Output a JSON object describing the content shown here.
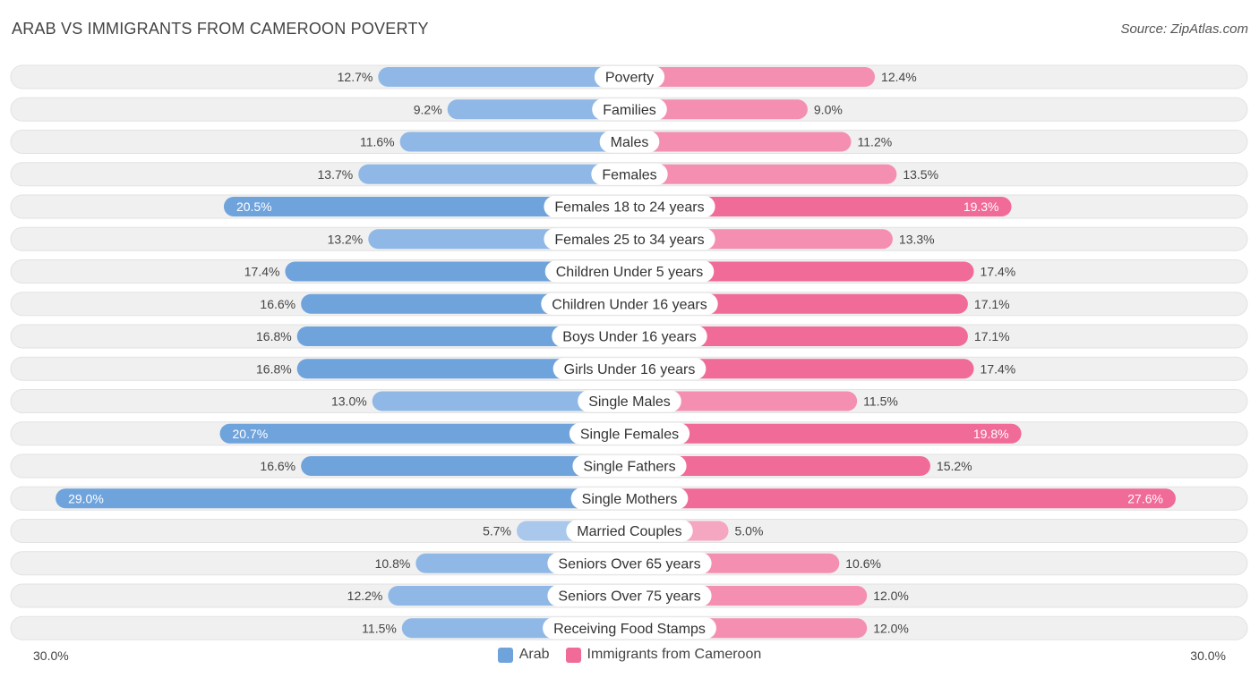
{
  "title": "ARAB VS IMMIGRANTS FROM CAMEROON POVERTY",
  "source": "Source: ZipAtlas.com",
  "axis": {
    "left_label": "30.0%",
    "right_label": "30.0%"
  },
  "legend": {
    "arab": "Arab",
    "immigrants": "Immigrants from Cameroon"
  },
  "colors": {
    "arab": "#6fa3dc",
    "arab_light": "#a9c8ec",
    "immigrants": "#f06b97",
    "immigrants_light": "#f5a6c0",
    "row_bg": "#f0f0f0"
  },
  "chart_data": {
    "type": "bar",
    "orientation": "diverging-horizontal",
    "title": "ARAB VS IMMIGRANTS FROM CAMEROON POVERTY",
    "xlim": [
      -30,
      30
    ],
    "unit": "%",
    "categories": [
      "Poverty",
      "Families",
      "Males",
      "Females",
      "Females 18 to 24 years",
      "Females 25 to 34 years",
      "Children Under 5 years",
      "Children Under 16 years",
      "Boys Under 16 years",
      "Girls Under 16 years",
      "Single Males",
      "Single Females",
      "Single Fathers",
      "Single Mothers",
      "Married Couples",
      "Seniors Over 65 years",
      "Seniors Over 75 years",
      "Receiving Food Stamps"
    ],
    "series": [
      {
        "name": "Arab",
        "values": [
          12.7,
          9.2,
          11.6,
          13.7,
          20.5,
          13.2,
          17.4,
          16.6,
          16.8,
          16.8,
          13.0,
          20.7,
          16.6,
          29.0,
          5.7,
          10.8,
          12.2,
          11.5
        ]
      },
      {
        "name": "Immigrants from Cameroon",
        "values": [
          12.4,
          9.0,
          11.2,
          13.5,
          19.3,
          13.3,
          17.4,
          17.1,
          17.1,
          17.4,
          11.5,
          19.8,
          15.2,
          27.6,
          5.0,
          10.6,
          12.0,
          12.0
        ]
      }
    ]
  }
}
